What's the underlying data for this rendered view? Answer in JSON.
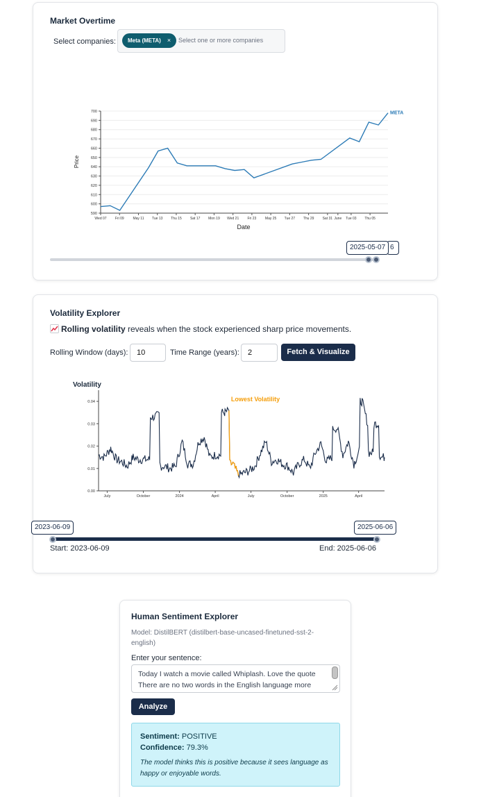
{
  "market": {
    "title": "Market Overtime",
    "select_label": "Select companies:",
    "selected_tag": "Meta (META)",
    "tag_close": "×",
    "placeholder": "Select one or more companies",
    "range_start_label": "2025-05-07",
    "range_end_label_partial": "6"
  },
  "volatility": {
    "title": "Volatility Explorer",
    "intro_icon": "chart-increasing-icon",
    "intro_bold": "Rolling volatility",
    "intro_rest": " reveals when the stock experienced sharp price movements.",
    "window_label": "Rolling Window (days):",
    "window_value": "10",
    "range_label": "Time Range (years):",
    "range_value": "2",
    "fetch_button": "Fetch & Visualize",
    "slider_start_label": "2023-06-09",
    "slider_end_label": "2025-06-06",
    "start_text": "Start: 2023-06-09",
    "end_text": "End: 2025-06-06"
  },
  "sentiment": {
    "title": "Human Sentiment Explorer",
    "model": "Model: DistilBERT (distilbert-base-uncased-finetuned-sst-2-english)",
    "prompt": "Enter your sentence:",
    "text_value": "Today I watch a movie called Whiplash. Love the quote There are no two words in the English language more",
    "analyze_button": "Analyze",
    "sentiment_label": "Sentiment:",
    "sentiment_value": "POSITIVE",
    "confidence_label": "Confidence:",
    "confidence_value": "79.3%",
    "explanation": "The model thinks this is positive because it sees language as happy or enjoyable words."
  },
  "colors": {
    "accent": "#1b2d4a",
    "tag": "#0f5d6e",
    "price_line": "#2c7bb6",
    "vol_line": "#1b2d4a",
    "highlight": "#f59e0b",
    "result_bg": "#cff3fa"
  },
  "chart_data": [
    {
      "type": "line",
      "title": "",
      "xlabel": "Date",
      "ylabel": "Price",
      "ylim": [
        590,
        700
      ],
      "yticks": [
        "590",
        "600",
        "610",
        "620",
        "630",
        "640",
        "650",
        "660",
        "670",
        "680",
        "690",
        "700"
      ],
      "xticks": [
        "Wed 07",
        "Fri 09",
        "May 11",
        "Tue 13",
        "Thu 15",
        "Sat 17",
        "Mon 19",
        "Wed 21",
        "Fri 23",
        "May 25",
        "Tue 27",
        "Thu 29",
        "Sat 31",
        "June",
        "Tue 03",
        "Thu 05"
      ],
      "grid": true,
      "series": [
        {
          "name": "META",
          "points": [
            [
              "2025-05-07",
              597
            ],
            [
              "2025-05-08",
              598
            ],
            [
              "2025-05-09",
              593
            ],
            [
              "2025-05-12",
              639
            ],
            [
              "2025-05-13",
              657
            ],
            [
              "2025-05-14",
              660
            ],
            [
              "2025-05-15",
              644
            ],
            [
              "2025-05-16",
              641
            ],
            [
              "2025-05-19",
              641
            ],
            [
              "2025-05-20",
              638
            ],
            [
              "2025-05-21",
              636
            ],
            [
              "2025-05-22",
              637
            ],
            [
              "2025-05-23",
              628
            ],
            [
              "2025-05-27",
              643
            ],
            [
              "2025-05-28",
              645
            ],
            [
              "2025-05-29",
              647
            ],
            [
              "2025-05-30",
              648
            ],
            [
              "2025-06-02",
              671
            ],
            [
              "2025-06-03",
              667
            ],
            [
              "2025-06-04",
              688
            ],
            [
              "2025-06-05",
              685
            ],
            [
              "2025-06-06",
              698
            ]
          ]
        }
      ]
    },
    {
      "type": "line",
      "title": "",
      "ylabel": "Volatility",
      "ylim": [
        0,
        0.045
      ],
      "yticks": [
        "0.00",
        "0.01",
        "0.02",
        "0.03",
        "0.04"
      ],
      "xticks": [
        "July",
        "October",
        "2024",
        "April",
        "July",
        "October",
        "2025",
        "April"
      ],
      "annotation": "Lowest Volatility",
      "series": [
        {
          "name": "",
          "points": [
            [
              "2023-06-09",
              0.016
            ],
            [
              "2023-06-23",
              0.015
            ],
            [
              "2023-07-10",
              0.019
            ],
            [
              "2023-07-24",
              0.014
            ],
            [
              "2023-08-07",
              0.013
            ],
            [
              "2023-08-21",
              0.011
            ],
            [
              "2023-09-05",
              0.015
            ],
            [
              "2023-09-19",
              0.014
            ],
            [
              "2023-10-03",
              0.014
            ],
            [
              "2023-10-17",
              0.014
            ],
            [
              "2023-10-27",
              0.033
            ],
            [
              "2023-11-10",
              0.034
            ],
            [
              "2023-11-24",
              0.011
            ],
            [
              "2023-12-08",
              0.01
            ],
            [
              "2023-12-22",
              0.011
            ],
            [
              "2024-01-08",
              0.022
            ],
            [
              "2024-01-22",
              0.012
            ],
            [
              "2024-02-05",
              0.012
            ],
            [
              "2024-02-19",
              0.022
            ],
            [
              "2024-03-04",
              0.024
            ],
            [
              "2024-03-18",
              0.015
            ],
            [
              "2024-04-01",
              0.016
            ],
            [
              "2024-04-15",
              0.016
            ],
            [
              "2024-04-26",
              0.035
            ],
            [
              "2024-05-06",
              0.036
            ],
            [
              "2024-05-16",
              0.012
            ],
            [
              "2024-05-30",
              0.007
            ],
            [
              "2024-06-13",
              0.008
            ],
            [
              "2024-06-27",
              0.009
            ],
            [
              "2024-07-11",
              0.011
            ],
            [
              "2024-07-25",
              0.017
            ],
            [
              "2024-08-08",
              0.022
            ],
            [
              "2024-08-22",
              0.013
            ],
            [
              "2024-09-05",
              0.014
            ],
            [
              "2024-09-19",
              0.012
            ],
            [
              "2024-10-03",
              0.011
            ],
            [
              "2024-10-17",
              0.008
            ],
            [
              "2024-10-31",
              0.012
            ],
            [
              "2024-11-14",
              0.014
            ],
            [
              "2024-11-28",
              0.01
            ],
            [
              "2024-12-12",
              0.017
            ],
            [
              "2024-12-26",
              0.021
            ],
            [
              "2025-01-09",
              0.013
            ],
            [
              "2025-01-23",
              0.015
            ],
            [
              "2025-02-06",
              0.028
            ],
            [
              "2025-02-20",
              0.016
            ],
            [
              "2025-03-06",
              0.022
            ],
            [
              "2025-03-20",
              0.012
            ],
            [
              "2025-04-03",
              0.018
            ],
            [
              "2025-04-10",
              0.04
            ],
            [
              "2025-04-24",
              0.03
            ],
            [
              "2025-05-08",
              0.017
            ],
            [
              "2025-05-22",
              0.03
            ],
            [
              "2025-06-06",
              0.015
            ]
          ]
        }
      ]
    }
  ]
}
